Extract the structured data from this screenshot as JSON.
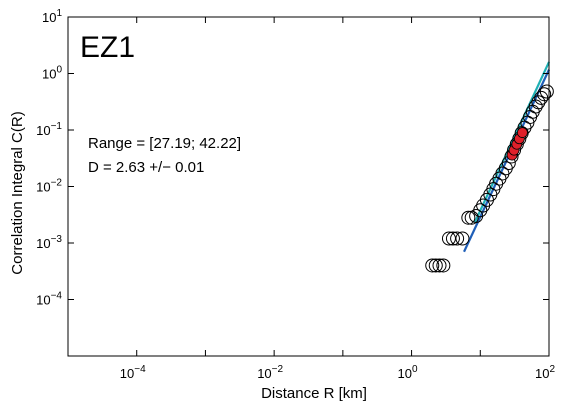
{
  "chart_data": {
    "type": "scatter",
    "panel_label": "EZ1",
    "xlabel": "Distance R [km]",
    "ylabel": "Correlation Integral C(R)",
    "x_scale": "log",
    "y_scale": "log",
    "xlim": [
      1e-05,
      100
    ],
    "ylim": [
      1e-05,
      10
    ],
    "grid": false,
    "x_ticks": [
      {
        "value": 0.0001,
        "base": "10",
        "exp": "−4"
      },
      {
        "value": 0.01,
        "base": "10",
        "exp": "−2"
      },
      {
        "value": 1,
        "base": "10",
        "exp": "0"
      },
      {
        "value": 100,
        "base": "10",
        "exp": "2"
      }
    ],
    "y_ticks": [
      {
        "value": 0.0001,
        "base": "10",
        "exp": "−4"
      },
      {
        "value": 0.001,
        "base": "10",
        "exp": "−3"
      },
      {
        "value": 0.01,
        "base": "10",
        "exp": "−2"
      },
      {
        "value": 0.1,
        "base": "10",
        "exp": "−1"
      },
      {
        "value": 1,
        "base": "10",
        "exp": "0"
      },
      {
        "value": 10,
        "base": "10",
        "exp": "1"
      }
    ],
    "annotations": {
      "range": "Range = [27.19; 42.22]",
      "dimension": "D =  2.63  +/− 0.01"
    },
    "series": [
      {
        "marker": "open-circle",
        "x": [
          2.0,
          2.25,
          2.55,
          2.9,
          3.5,
          4.0,
          4.6,
          5.5,
          6.7,
          7.5,
          8.7,
          10.0,
          11.0,
          12.5,
          14.0,
          15.5,
          17.0,
          19.0,
          21.0,
          23.5,
          26.0,
          28.5,
          31.0,
          34.0,
          37.0,
          40.0,
          44.0,
          48.5,
          53.0,
          58.0,
          64.0,
          70.0,
          77.0,
          85.0,
          93.0
        ],
        "y": [
          0.0004,
          0.0004,
          0.0004,
          0.0004,
          0.0012,
          0.0012,
          0.0012,
          0.0012,
          0.0028,
          0.0028,
          0.003,
          0.0038,
          0.0046,
          0.0058,
          0.0072,
          0.009,
          0.0112,
          0.0138,
          0.017,
          0.021,
          0.026,
          0.034,
          0.044,
          0.056,
          0.07,
          0.088,
          0.11,
          0.135,
          0.17,
          0.21,
          0.26,
          0.31,
          0.37,
          0.43,
          0.48
        ]
      },
      {
        "marker": "filled-circle",
        "color": "#e0202a",
        "x": [
          29.0,
          31.0,
          34.0,
          37.0,
          41.0
        ],
        "y": [
          0.036,
          0.044,
          0.056,
          0.07,
          0.09
        ]
      }
    ],
    "fit_lines": [
      {
        "color": "#1f5fb8",
        "x": [
          5.8,
          100
        ],
        "y": [
          0.0007,
          1.17
        ]
      },
      {
        "color": "#1fb0b4",
        "x": [
          8.3,
          100
        ],
        "y": [
          0.0023,
          1.6
        ]
      }
    ]
  }
}
